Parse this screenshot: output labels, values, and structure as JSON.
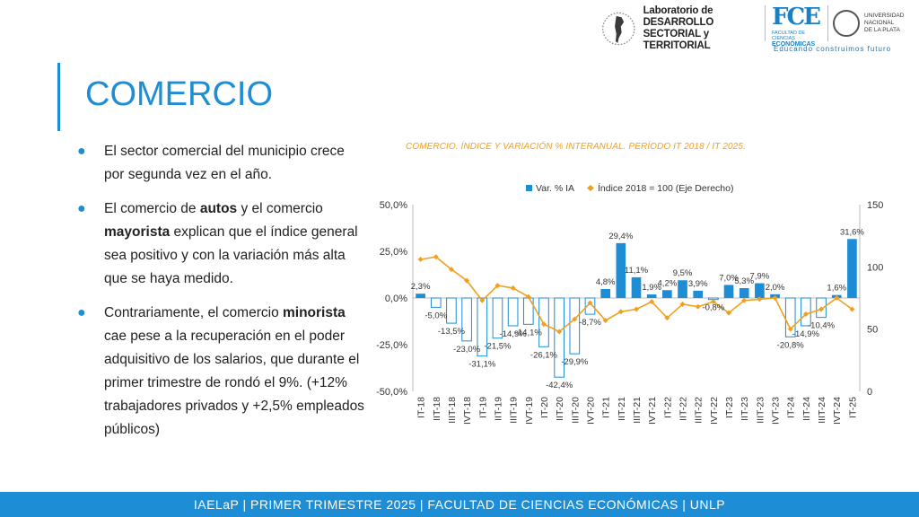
{
  "header": {
    "lab_line1": "Laboratorio de DESARROLLO",
    "lab_line2": "SECTORIAL y TERRITORIAL",
    "fce_mark": "FCE",
    "fce_line1": "FACULTAD DE CIENCIAS",
    "fce_line2": "ECONÓMICAS",
    "unlp_line1": "UNIVERSIDAD",
    "unlp_line2": "NACIONAL",
    "unlp_line3": "DE LA PLATA",
    "tagline": "Educando construimos futuro"
  },
  "title": "COMERCIO",
  "bullets": [
    {
      "pre": "El sector comercial del municipio crece por segunda vez en el año."
    },
    {
      "p1": "El comercio de ",
      "b1": "autos",
      "p2": " y el comercio ",
      "b2": "mayorista",
      "p3": " explican que el índice general sea positivo y con la variación más alta que se haya medido."
    },
    {
      "p1": "Contrariamente, el comercio ",
      "b1": "minorista",
      "p2": " cae pese a la recuperación en el poder adquisitivo de los salarios, que durante el primer trimestre de rondó el 9%. (+12% trabajadores privados y +2,5% empleados públicos)"
    }
  ],
  "chart_title": "COMERCIO. ÍNDICE Y VARIACIÓN % INTERANUAL. PERÍODO IT 2018 /  IT 2025.",
  "chart_data": {
    "type": "bar",
    "categories": [
      "IT-18",
      "IIT-18",
      "IIIT-18",
      "IVT-18",
      "IT-19",
      "IIT-19",
      "IIIT-19",
      "IVT-19",
      "IT-20",
      "IIT-20",
      "IIIT-20",
      "IVT-20",
      "IT-21",
      "IIT-21",
      "IIIT-21",
      "IVT-21",
      "IT-22",
      "IIT-22",
      "IIIT-22",
      "IVT-22",
      "IT-23",
      "IIT-23",
      "IIIT-23",
      "IVT-23",
      "IT-24",
      "IIT-24",
      "IIIT-24",
      "IVT-24",
      "IT-25"
    ],
    "series": [
      {
        "name": "Var. % IA",
        "axis": "left",
        "values": [
          2.3,
          -5.0,
          -13.5,
          -23.0,
          -31.1,
          -21.5,
          -14.9,
          -14.1,
          -26.1,
          -42.4,
          -29.9,
          -8.7,
          4.8,
          29.4,
          11.1,
          1.9,
          4.2,
          9.5,
          3.9,
          -0.8,
          7.0,
          5.3,
          7.9,
          2.0,
          -20.8,
          -14.9,
          -10.4,
          1.6,
          31.6
        ],
        "labels": [
          "2,3%",
          "-5,0%",
          "-13,5%",
          "-23,0%",
          "-31,1%",
          "-21,5%",
          "-14,9%",
          "-14,1%",
          "-26,1%",
          "-42,4%",
          "-29,9%",
          "-8,7%",
          "4,8%",
          "29,4%",
          "11,1%",
          "1,9%",
          "4,2%",
          "9,5%",
          "3,9%",
          "-0,8%",
          "7,0%",
          "5,3%",
          "7,9%",
          "2,0%",
          "-20,8%",
          "-14,9%",
          "-10,4%",
          "1,6%",
          "31,6%"
        ],
        "color": "#1d8dd6"
      },
      {
        "name": "Índice 2018 = 100 (Eje Derecho)",
        "axis": "right",
        "values": [
          106,
          108,
          98,
          89,
          73,
          85,
          83,
          76,
          54,
          48,
          58,
          71,
          57,
          64,
          66,
          72,
          59,
          70,
          68,
          72,
          63,
          73,
          74,
          75,
          50,
          62,
          66,
          75,
          66
        ],
        "color": "#f0a020"
      }
    ],
    "y_left_ticks": [
      "50,0%",
      "25,0%",
      "0,0%",
      "-25,0%",
      "-50,0%"
    ],
    "ylim_left": [
      -50,
      50
    ],
    "y_right_ticks": [
      "150",
      "100",
      "50",
      "0"
    ],
    "ylim_right": [
      0,
      150
    ],
    "legend": "top"
  },
  "footer": "IAELaP   |   PRIMER TRIMESTRE 2025   |   FACULTAD DE CIENCIAS ECONÓMICAS   |   UNLP"
}
